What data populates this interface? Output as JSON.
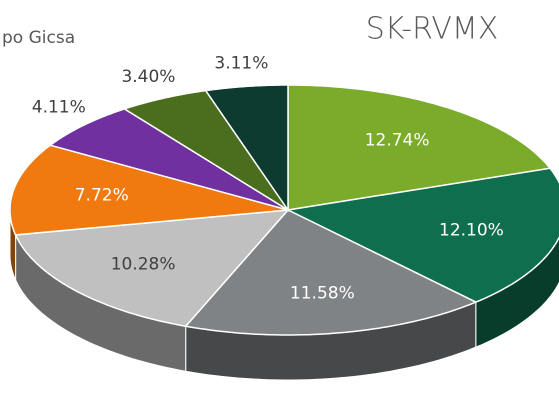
{
  "chart_data": {
    "type": "pie3d",
    "title": "SK-RVMX",
    "annotation": "po Gicsa",
    "values": [
      12.74,
      12.1,
      11.58,
      10.28,
      7.72,
      4.11,
      3.4,
      3.11
    ],
    "value_labels": [
      "12.74%",
      "12.10%",
      "11.58%",
      "10.28%",
      "7.72%",
      "4.11%",
      "3.40%",
      "3.11%"
    ],
    "colors": [
      "#7aab2a",
      "#0e6e4e",
      "#7f8385",
      "#c0c0c0",
      "#f07a10",
      "#7030a0",
      "#4a6e1e",
      "#0d3b30"
    ]
  }
}
